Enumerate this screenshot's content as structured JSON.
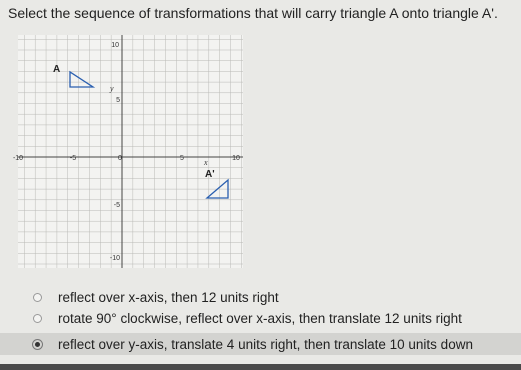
{
  "question": "Select the sequence of transformations that will carry triangle A onto triangle A'.",
  "graph": {
    "x_label": "x",
    "y_label": "y",
    "x_ticks": [
      "-10",
      "-5",
      "0",
      "5",
      "10"
    ],
    "y_ticks": [
      "10",
      "5",
      "-5",
      "-10"
    ],
    "shapes": [
      "A",
      "A'"
    ]
  },
  "options": [
    "reflect over x-axis, then 12 units right",
    "rotate 90° clockwise, reflect over x-axis, then translate 12 units right",
    "reflect over y-axis, translate 4 units right, then translate 10 units down"
  ],
  "selected": 2
}
